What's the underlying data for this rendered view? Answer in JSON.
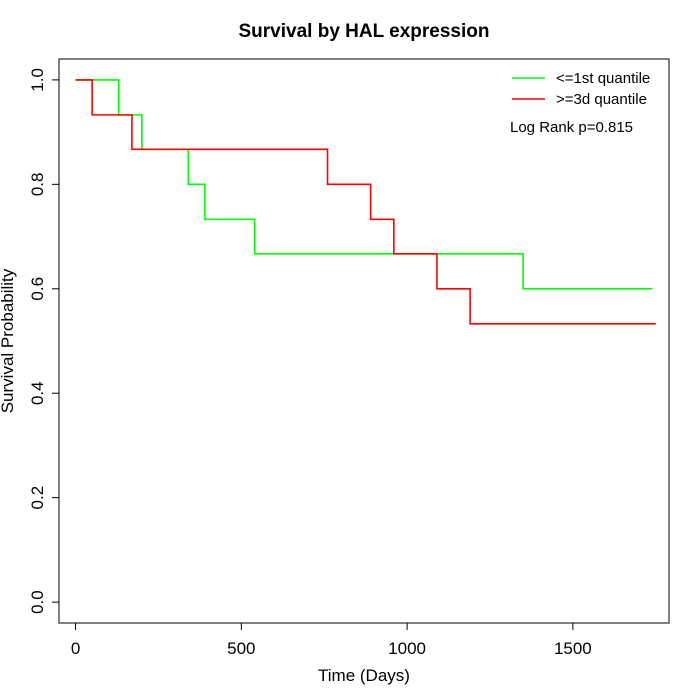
{
  "chart_data": {
    "type": "line",
    "step": true,
    "title": "Survival by HAL expression",
    "xlabel": "Time (Days)",
    "ylabel": "Survival Probability",
    "xlim": [
      -50,
      1790
    ],
    "ylim": [
      -0.04,
      1.04
    ],
    "xticks": [
      0,
      500,
      1000,
      1500
    ],
    "yticks": [
      0.0,
      0.2,
      0.4,
      0.6,
      0.8,
      1.0
    ],
    "ytick_labels": [
      "0.0",
      "0.2",
      "0.4",
      "0.6",
      "0.8",
      "1.0"
    ],
    "grid": false,
    "legend_position": "top-right",
    "annotation": "Log Rank p=0.815",
    "series": [
      {
        "name": "<=1st quantile",
        "color": "#00ff00",
        "x": [
          0,
          130,
          200,
          340,
          390,
          540,
          1350,
          1740
        ],
        "y": [
          1.0,
          0.933,
          0.867,
          0.8,
          0.733,
          0.667,
          0.6,
          0.6
        ]
      },
      {
        "name": ">=3d quantile",
        "color": "#ff0000",
        "x": [
          0,
          50,
          170,
          760,
          890,
          960,
          1090,
          1190,
          1750
        ],
        "y": [
          1.0,
          0.933,
          0.867,
          0.8,
          0.733,
          0.667,
          0.6,
          0.533,
          0.533
        ]
      }
    ]
  }
}
